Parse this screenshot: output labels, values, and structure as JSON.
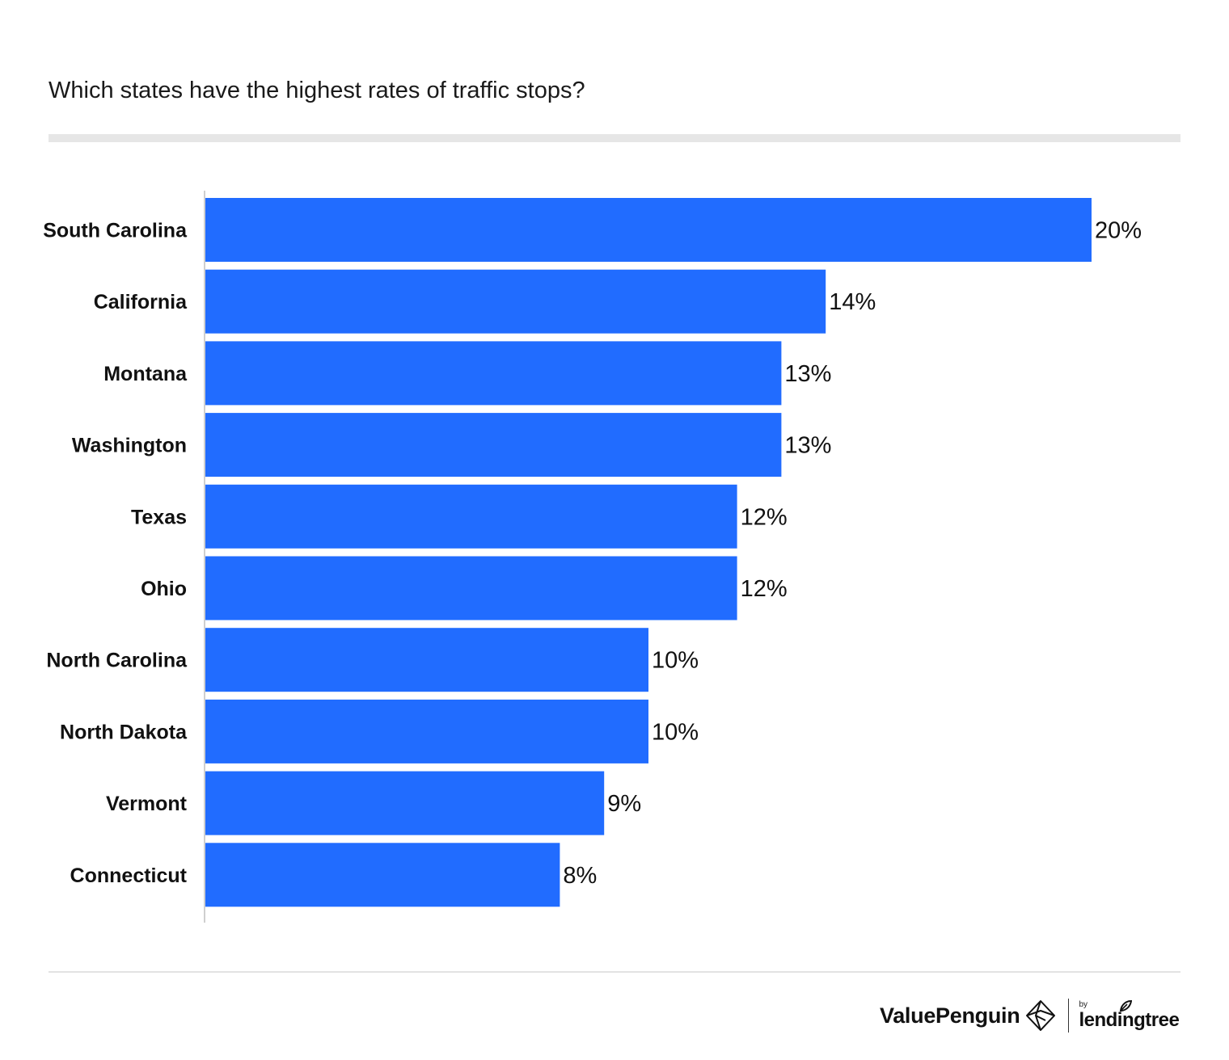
{
  "chart_data": {
    "type": "bar",
    "orientation": "horizontal",
    "title": "Which states have the highest rates of traffic stops?",
    "categories": [
      "South Carolina",
      "California",
      "Montana",
      "Washington",
      "Texas",
      "Ohio",
      "North Carolina",
      "North Dakota",
      "Vermont",
      "Connecticut"
    ],
    "values": [
      20,
      14,
      13,
      13,
      12,
      12,
      10,
      10,
      9,
      8
    ],
    "value_labels": [
      "20%",
      "14%",
      "13%",
      "13%",
      "12%",
      "12%",
      "10%",
      "10%",
      "9%",
      "8%"
    ],
    "xlabel": "",
    "ylabel": "",
    "xlim": [
      0,
      20
    ],
    "grid": false,
    "legend": "none",
    "bar_color": "#216cff"
  },
  "footer": {
    "brand": "ValuePenguin",
    "by": "by",
    "partner": "lendingtree"
  },
  "colors": {
    "bar": "#216cff",
    "axis": "#cfcfcf",
    "rule": "#e6e6e6"
  },
  "icons": {
    "brand_icon": "penguin-logo-icon",
    "partner_icon": "leaf-icon"
  }
}
